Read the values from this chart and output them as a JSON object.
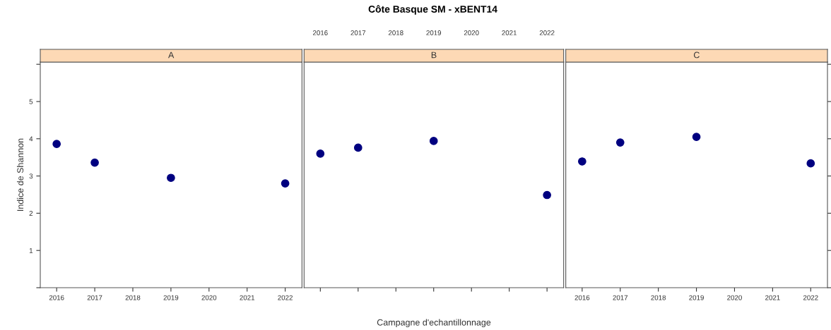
{
  "chart_data": [
    {
      "type": "scatter",
      "title": "A",
      "ylabel": "Indice de Shannon",
      "x": [
        2016,
        2017,
        2019,
        2022
      ],
      "series": [
        {
          "color": "#000080",
          "values": [
            3.86,
            3.36,
            2.95,
            2.8
          ]
        }
      ],
      "marker": "circle",
      "xlim": [
        2015.57,
        2022.44
      ],
      "xticks": [
        2016,
        2017,
        2018,
        2019,
        2020,
        2021,
        2022
      ],
      "ylim": [
        0,
        6.06
      ],
      "yticks": [
        {
          "value": 0,
          "label": null
        },
        1,
        2,
        3,
        4,
        5,
        {
          "value": 6,
          "label": null
        }
      ],
      "grid": false,
      "legend": false
    },
    {
      "type": "scatter",
      "title": "B",
      "xlabel": "Campagne d'echantillonnage",
      "annotations": [
        "Côte Basque SM - xBENT14"
      ],
      "x": [
        2016,
        2017,
        2019,
        2022
      ],
      "series": [
        {
          "color": "#000080",
          "values": [
            3.6,
            3.76,
            3.94,
            2.49
          ]
        }
      ],
      "marker": "circle",
      "xlim": [
        2015.57,
        2022.44
      ],
      "xticks": [
        2016,
        2017,
        2018,
        2019,
        2020,
        2021,
        2022
      ],
      "ylim": [
        0,
        6.06
      ],
      "tick_labels": "x",
      "grid": false,
      "legend": false
    },
    {
      "type": "scatter",
      "title": "C",
      "x": [
        2016,
        2017,
        2019,
        2022
      ],
      "series": [
        {
          "color": "#000080",
          "values": [
            3.39,
            3.9,
            4.05,
            3.34
          ]
        }
      ],
      "marker": "circle",
      "xlim": [
        2015.57,
        2022.44
      ],
      "xticks": [
        2016,
        2017,
        2018,
        2019,
        2020,
        2021,
        2022
      ],
      "ylim": [
        0,
        6.06
      ],
      "yticks": [
        {
          "value": 0,
          "label": null
        },
        {
          "value": 1,
          "label": null
        },
        {
          "value": 2,
          "label": null
        },
        {
          "value": 3,
          "label": null
        },
        {
          "value": 4,
          "label": null
        },
        {
          "value": 5,
          "label": null
        },
        {
          "value": 6,
          "label": null
        }
      ],
      "tick_labels": "x",
      "grid": false,
      "legend": false
    }
  ]
}
